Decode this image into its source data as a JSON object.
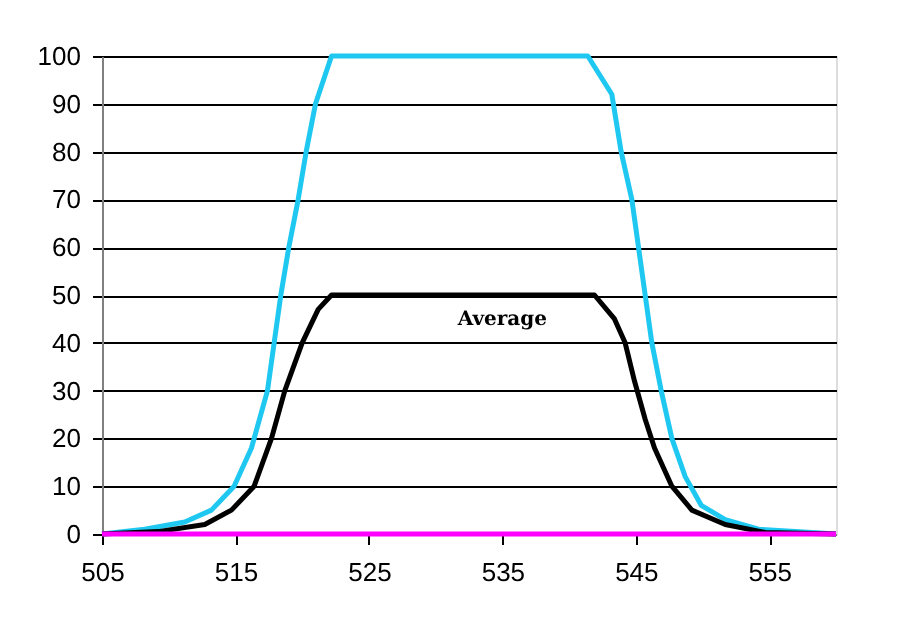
{
  "chart_data": {
    "type": "line",
    "xlim": [
      505,
      560
    ],
    "xticks": [
      505,
      515,
      525,
      535,
      545,
      555
    ],
    "ylim": [
      0,
      100
    ],
    "yticks": [
      0,
      10,
      20,
      30,
      40,
      50,
      60,
      70,
      80,
      90,
      100
    ],
    "grid": "y",
    "marker": "none",
    "line_style": "solid",
    "series": [
      {
        "color": "#1ec8f0",
        "x": [
          505,
          508.2,
          511.2,
          513.2,
          514.9,
          516.2,
          517.4,
          518.4,
          519,
          519.7,
          520.3,
          521,
          522.2,
          530,
          541.4,
          543.2,
          543.9,
          544.7,
          545.2,
          545.7,
          546.2,
          546.9,
          547.7,
          548.7,
          549.9,
          551.7,
          554.2,
          558.2,
          560
        ],
        "values": [
          0,
          1,
          2.5,
          5,
          10,
          18,
          30,
          50,
          60,
          70,
          80,
          90,
          100,
          100,
          100,
          92,
          80,
          70,
          60,
          50,
          40,
          30,
          20,
          12,
          6,
          3,
          1,
          0.3,
          0
        ]
      },
      {
        "name": "Average",
        "color": "#000000",
        "x": [
          505,
          509.2,
          512.7,
          514.7,
          516.4,
          517.7,
          518.7,
          520,
          521.2,
          522.2,
          528,
          535,
          541.9,
          543.4,
          544.2,
          544.9,
          545.7,
          546.4,
          547.7,
          549.2,
          551.7,
          554.7,
          560
        ],
        "values": [
          0,
          0.5,
          2,
          5,
          10,
          20,
          30,
          40,
          47,
          50,
          50,
          50,
          50,
          45,
          40,
          32,
          24,
          18,
          10,
          5,
          2,
          0.3,
          0
        ]
      },
      {
        "color": "#ff00ff",
        "x": [
          505,
          560
        ],
        "values": [
          0,
          0
        ]
      }
    ]
  }
}
